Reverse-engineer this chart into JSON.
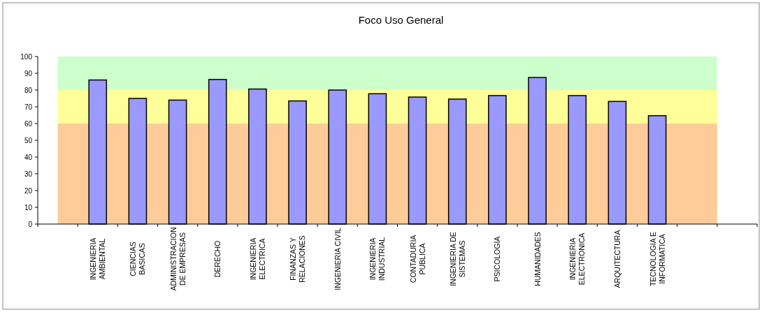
{
  "chart_data": {
    "type": "bar",
    "title": "Foco Uso General",
    "categories": [
      null,
      "INGENIERIA\nAMBIENTAL",
      "CIENCIAS\nBASICAS",
      "ADMINISTRACION\nDE EMPRESAS",
      "DERECHO",
      "INGENIERIA\nELECTRICA",
      "FINANZAS Y\nRELACIONES",
      "INGENIERIA CIVIL",
      "INGENIERIA\nINDUSTRIAL",
      "CONTADURIA\nPUBLICA",
      "INGENIERIA DE\nSISTEMAS",
      "PSICOLOGIA",
      "HUMANIDADES",
      "INGENIERIA\nELECTRONICA",
      "ARQUITECTURA",
      "TECNOLOGIA E\nINFORMATICA",
      null,
      null
    ],
    "values": [
      null,
      86,
      75,
      74,
      86.3,
      80.6,
      73.5,
      80,
      77.8,
      75.8,
      74.6,
      76.7,
      87.5,
      76.7,
      73.2,
      64.7,
      null,
      null
    ],
    "color": "#9999ff",
    "ylim": [
      0,
      100
    ],
    "yticks": [
      0,
      10,
      20,
      30,
      40,
      50,
      60,
      70,
      80,
      90,
      100
    ],
    "bands": [
      {
        "axis": "y",
        "from": 0,
        "to": 60,
        "color": "#ffcc99"
      },
      {
        "axis": "y",
        "from": 60,
        "to": 80,
        "color": "#ffff99"
      },
      {
        "axis": "y",
        "from": 80,
        "to": 100,
        "color": "#ccffcc"
      }
    ]
  }
}
